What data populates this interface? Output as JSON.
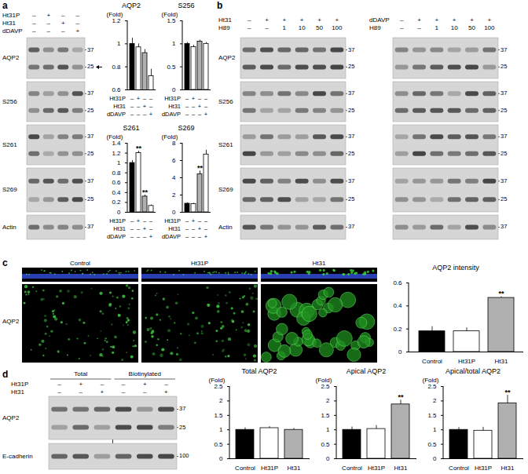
{
  "chart_data": [
    {
      "type": "bar",
      "title": "AQP2",
      "y_label": "(Fold)",
      "categories": [
        null,
        null,
        null,
        null
      ],
      "values": [
        1,
        0.97,
        0.92,
        0.72
      ],
      "errors": [
        0.05,
        0.03,
        0.03,
        0.06
      ],
      "colors": [
        "#000000",
        "#ffffff",
        "#b0b0b0",
        "#ffffff"
      ],
      "ylim": [
        0.6,
        1.2
      ],
      "yticks": [
        0.6,
        0.8,
        1,
        1.2
      ],
      "tick_labels": "y",
      "conditions": [
        {
          "label": "Ht31P",
          "marks": [
            "–",
            "+",
            "–",
            "–"
          ]
        },
        {
          "label": "Ht31",
          "marks": [
            "–",
            "–",
            "+",
            "–"
          ]
        },
        {
          "label": "dDAVP",
          "marks": [
            "–",
            "–",
            "–",
            "+"
          ]
        }
      ]
    },
    {
      "type": "bar",
      "title": "S256",
      "y_label": "(Fold)",
      "categories": [
        null,
        null,
        null,
        null
      ],
      "values": [
        1,
        0.93,
        1.05,
        1.0
      ],
      "errors": [
        0.03,
        0.04,
        0.03,
        0.03
      ],
      "colors": [
        "#000000",
        "#ffffff",
        "#b0b0b0",
        "#ffffff"
      ],
      "ylim": [
        0,
        1.5
      ],
      "yticks": [
        0,
        0.5,
        1,
        1.5
      ],
      "tick_labels": "y",
      "conditions": [
        {
          "label": "Ht31P",
          "marks": [
            "–",
            "+",
            "–",
            "–"
          ]
        },
        {
          "label": "Ht31",
          "marks": [
            "–",
            "–",
            "+",
            "–"
          ]
        },
        {
          "label": "dDAVP",
          "marks": [
            "–",
            "–",
            "–",
            "+"
          ]
        }
      ]
    },
    {
      "type": "bar",
      "title": "S261",
      "y_label": "(Fold)",
      "categories": [
        null,
        null,
        null,
        null
      ],
      "values": [
        1,
        1.2,
        0.32,
        0.13
      ],
      "errors": [
        0.05,
        0.04,
        0.03,
        0.02
      ],
      "colors": [
        "#000000",
        "#ffffff",
        "#b0b0b0",
        "#ffffff"
      ],
      "ylim": [
        0,
        1.4
      ],
      "yticks": [
        0,
        0.2,
        0.4,
        0.6,
        0.8,
        1,
        1.2,
        1.4
      ],
      "tick_labels": "y",
      "annotations": [
        {
          "x": 1,
          "text": "**"
        },
        {
          "x": 2,
          "text": "**"
        }
      ],
      "conditions": [
        {
          "label": "Ht31P",
          "marks": [
            "–",
            "+",
            "–",
            "–"
          ]
        },
        {
          "label": "Ht31",
          "marks": [
            "–",
            "–",
            "+",
            "–"
          ]
        },
        {
          "label": "dDAVP",
          "marks": [
            "–",
            "–",
            "–",
            "+"
          ]
        }
      ]
    },
    {
      "type": "bar",
      "title": "S269",
      "y_label": "(Fold)",
      "categories": [
        null,
        null,
        null,
        null
      ],
      "values": [
        1,
        0.95,
        4.4,
        6.7
      ],
      "errors": [
        0.1,
        0.1,
        0.4,
        0.5
      ],
      "colors": [
        "#000000",
        "#ffffff",
        "#b0b0b0",
        "#ffffff"
      ],
      "ylim": [
        0,
        8
      ],
      "yticks": [
        0,
        2,
        4,
        6,
        8
      ],
      "tick_labels": "y",
      "annotations": [
        {
          "x": 2,
          "text": "**"
        }
      ],
      "conditions": [
        {
          "label": "Ht31P",
          "marks": [
            "–",
            "+",
            "–",
            "–"
          ]
        },
        {
          "label": "Ht31",
          "marks": [
            "–",
            "–",
            "+",
            "–"
          ]
        },
        {
          "label": "dDAVP",
          "marks": [
            "–",
            "–",
            "–",
            "+"
          ]
        }
      ]
    },
    {
      "type": "bar",
      "title": "AQP2 intensity",
      "categories": [
        "Control",
        "Ht31P",
        "Ht31"
      ],
      "values": [
        0.18,
        0.18,
        0.47
      ],
      "errors": [
        0.04,
        0.03,
        0.01
      ],
      "colors": [
        "#000000",
        "#ffffff",
        "#b0b0b0"
      ],
      "ylim": [
        0,
        0.6
      ],
      "yticks": [
        0,
        0.2,
        0.4,
        0.6
      ],
      "annotations": [
        {
          "x": 2,
          "text": "**"
        }
      ]
    },
    {
      "type": "bar",
      "title": "Total AQP2",
      "y_label": "(Fold)",
      "categories": [
        "Control",
        "Ht31P",
        "Ht31"
      ],
      "values": [
        1,
        1.06,
        1.0
      ],
      "errors": [
        0.07,
        0.05,
        0.05
      ],
      "colors": [
        "#000000",
        "#ffffff",
        "#b0b0b0"
      ],
      "ylim": [
        0,
        2.5
      ],
      "yticks": [
        0,
        0.5,
        1,
        1.5,
        2,
        2.5
      ]
    },
    {
      "type": "bar",
      "title": "Apical AQP2",
      "y_label": "(Fold)",
      "categories": [
        "Control",
        "Ht31P",
        "Ht31"
      ],
      "values": [
        1,
        1.03,
        1.88
      ],
      "errors": [
        0.1,
        0.12,
        0.15
      ],
      "colors": [
        "#000000",
        "#ffffff",
        "#b0b0b0"
      ],
      "ylim": [
        0,
        2.5
      ],
      "yticks": [
        0,
        0.5,
        1,
        1.5,
        2,
        2.5
      ],
      "annotations": [
        {
          "x": 2,
          "text": "**"
        }
      ]
    },
    {
      "type": "bar",
      "title": "Apical/total AQP2",
      "y_label": "(Fold)",
      "categories": [
        "Control",
        "Ht31P",
        "Ht31"
      ],
      "values": [
        1,
        0.97,
        1.92
      ],
      "errors": [
        0.08,
        0.12,
        0.28
      ],
      "colors": [
        "#000000",
        "#ffffff",
        "#b0b0b0"
      ],
      "ylim": [
        0,
        2.5
      ],
      "yticks": [
        0,
        0.5,
        1,
        1.5,
        2,
        2.5
      ],
      "annotations": [
        {
          "x": 2,
          "text": "**"
        }
      ]
    }
  ],
  "panels": {
    "a": {
      "letter": "a",
      "conditions": [
        {
          "label": "Ht31P",
          "marks": [
            "–",
            "+",
            "–",
            "–"
          ]
        },
        {
          "label": "Ht31",
          "marks": [
            "–",
            "–",
            "+",
            "–"
          ]
        },
        {
          "label": "dDAVP",
          "marks": [
            "–",
            "–",
            "–",
            "+"
          ]
        }
      ],
      "rows": [
        {
          "label": "AQP2",
          "mw": [
            37,
            25
          ]
        },
        {
          "label": "S256",
          "mw": [
            37,
            25
          ]
        },
        {
          "label": "S261",
          "mw": [
            37,
            25
          ]
        },
        {
          "label": "S269",
          "mw": [
            37,
            25
          ]
        },
        {
          "label": "Actin",
          "mw": [
            37
          ]
        }
      ]
    },
    "b": {
      "letter": "b",
      "rows": [
        {
          "label": "AQP2",
          "mw": [
            37,
            25
          ]
        },
        {
          "label": "S256",
          "mw": [
            37,
            25
          ]
        },
        {
          "label": "S261",
          "mw": [
            37,
            25
          ]
        },
        {
          "label": "S269",
          "mw": [
            37,
            25
          ]
        },
        {
          "label": "Actin",
          "mw": [
            37
          ]
        }
      ],
      "blots": [
        {
          "conditions": [
            {
              "label": "Ht31",
              "marks": [
                "–",
                "+",
                "+",
                "+",
                "+",
                "+"
              ]
            },
            {
              "label": "H89",
              "marks": [
                "–",
                "–",
                "1",
                "10",
                "50",
                "100"
              ]
            }
          ]
        },
        {
          "conditions": [
            {
              "label": "dDAVP",
              "marks": [
                "–",
                "+",
                "+",
                "+",
                "+",
                "+"
              ]
            },
            {
              "label": "H89",
              "marks": [
                "–",
                "–",
                "1",
                "10",
                "50",
                "100"
              ]
            }
          ]
        }
      ]
    },
    "c": {
      "letter": "c",
      "columns": [
        "Control",
        "Ht31P",
        "Ht31"
      ],
      "row_label": "AQP2"
    },
    "d": {
      "letter": "d",
      "groups": [
        {
          "label": "Total",
          "lanes": 3
        },
        {
          "label": "Biotinylated",
          "lanes": 3
        }
      ],
      "conditions": [
        {
          "label": "Ht31P",
          "marks": [
            "–",
            "+",
            "–",
            "–",
            "+",
            "–"
          ]
        },
        {
          "label": "Ht31",
          "marks": [
            "–",
            "–",
            "+",
            "–",
            "–",
            "+"
          ]
        }
      ],
      "rows": [
        {
          "label": "AQP2",
          "mw": [
            37,
            25
          ]
        },
        {
          "label": "E-cadherin",
          "mw": [
            100
          ]
        }
      ]
    }
  }
}
